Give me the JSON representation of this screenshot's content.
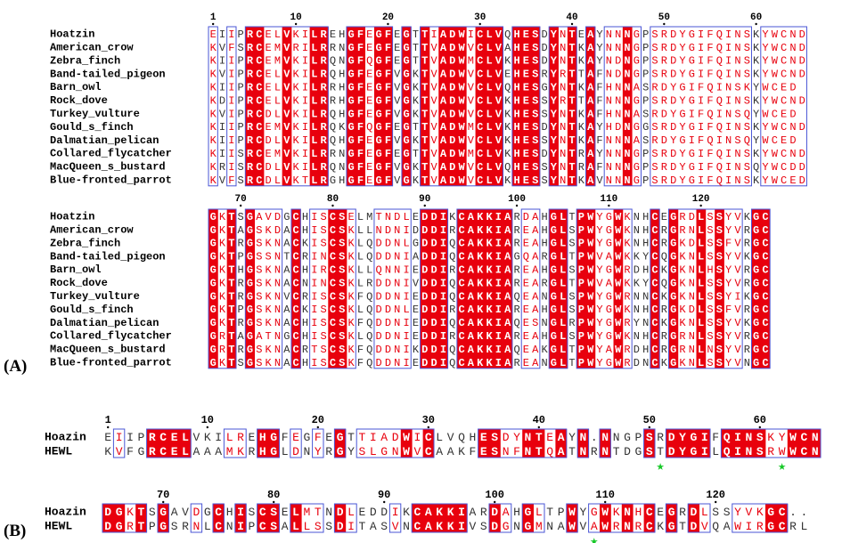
{
  "panel_a": {
    "label": "(A)",
    "blocks": [
      {
        "ruler": [
          {
            "label": "1",
            "col": 1
          },
          {
            "label": "10",
            "col": 10
          },
          {
            "label": "20",
            "col": 20
          },
          {
            "label": "30",
            "col": 30
          },
          {
            "label": "40",
            "col": 40
          },
          {
            "label": "50",
            "col": 50
          },
          {
            "label": "60",
            "col": 60
          }
        ],
        "names": [
          "Hoatzin",
          "American_crow",
          "Zebra_finch",
          "Band-tailed_pigeon",
          "Barn_owl",
          "Rock_dove",
          "Turkey_vulture",
          "Gould_s_finch",
          "Dalmatian_pelican",
          "Collared_flycatcher",
          "MacQueen_s_bustard",
          "Blue-fronted_parrot"
        ],
        "seqs": [
          "EIIPRCELVKILREHGFEGFEGTTIADWICLVQHESDYNTEAYNNNGPSRDYGIFQINSKYWCND",
          "KVFSRCEMVRILRRNGFEGFEGTTVADWVCLVAHESDYNTKAYNNNGPSRDYGIFQINSKYWCND",
          "KIIPRCEMVKILRQNGFQGFEGTTVADWMCLVKHESDYNTKAYNDNGPSRDYGIFQINSKYWCND",
          "KVIPRCELVKILRQHGFEGFVGKTVADWVCLVEHESRYRTTAFNDNGPSRDYGIFQINSKYWCND",
          "KIIPRCELVKILRRHGFEGFVGKTVADWVCLVQHESGYNTKAFHNNASRDYGIFQINSKYWCED",
          "KDIPRCELVKILRRHGFEGFVGKTVADWVCLVKHESSYRTTAFNNNGPSRDYGIFQINSKYWCND",
          "KVIPRCDLVKILRQHGFEGFVGKTVADWVCLVKHESSYNTKAFHNNASRDYGIFQINSQYWCED",
          "KIIPRCEMVKILRQKGFQGFEGTTVADWMCLVKHESDYNTKAYHDNGGSRDYGIFQINSKYWCND",
          "KIIPRCDLVKILRQHGFEGFVGKTVADWVCLVKHESSYNTKAFNNNASRDYGIFQINSQYWCED",
          "KIISRCEMVKILRRNGFEGFEGTTVADWMCLVKHESDYNTRAYNNNGPSRDYGIFQINSKYWCND",
          "KRISRCDLVKILRQNGFEGFVGKTVADWVCLVQHESSYNTRAFNNNGPSRDYGIFQINSQYWCDD",
          "KVFSRCDLVKTLRGHGFEGFVGKTVADWVCLVKHESSYNTKAVNNNGPSRDYGIFQINSKYWCED"
        ]
      },
      {
        "ruler": [
          {
            "label": "70",
            "col": 4
          },
          {
            "label": "80",
            "col": 14
          },
          {
            "label": "90",
            "col": 24
          },
          {
            "label": "100",
            "col": 34
          },
          {
            "label": "110",
            "col": 44
          },
          {
            "label": "120",
            "col": 54
          }
        ],
        "names": [
          "Hoatzin",
          "American_crow",
          "Zebra_finch",
          "Band-tailed_pigeon",
          "Barn_owl",
          "Rock_dove",
          "Turkey_vulture",
          "Gould_s_finch",
          "Dalmatian_pelican",
          "Collared_flycatcher",
          "MacQueen_s_bustard",
          "Blue-fronted_parrot"
        ],
        "seqs": [
          "GKTSGAVDGCHISCSELMTNDLEDDIKCAKKIARDAHGLTPWYGWKNHCEGRDLSSYVKGC",
          "GKTAGSKDACHISCSKLLNDNIDDDIRCAKKIAREAHGLSPWYGWKNHCRGRNLSSYVRGC",
          "GKTRGSKNACKISCSKLQDDNLGDDIQCAKKIAREAHGLSPWYGWKNHCRGKDLSSFVRGC",
          "GKTPGSSNTCRINCSKLQDDNIADDIQCAKKIAGQARGLTPWVAWKKYCQGKNLSSYVKGC",
          "GKTHGSKNACHIRCSKLLQNNIEDDIRCAKKIAREAHGLSPWYGWRDHCKGKNLHSYVRGC",
          "GKTRGSKNACNINCSKLRDDNIVDDIQCAKKIAREARGLTPWVAWKKYCQGKNLSSYVRGC",
          "GKTRGSKNVCRISCSKFQDDNIEDDIQCAKKIAQEANGLSPWYGWRNNCKGKNLSSYIKGC",
          "GKTPGSKNACKISCSKLQDDNLEDDIRCAKKIAREAHGLSPWYGWKNHCRGKDLSSFVRGC",
          "GKTRGSKNACHISCSKFQDDNIEDDIQCAKKIAQESNGLRPWYGWRYNCKGKNLSSYVKGC",
          "GRTAGATNGCHISCSKLQDDNIEDDIRCAKKIAREAHGLSPWYGWKNHCRGRNLSSYVRGC",
          "GRTRGSKNACRTSCSKFQDDNIKDDIQCAKKIAQEAKGLTPWYAWRDHCRGRNLNSYVRGC",
          "GKTSGSKNACHISCSKFQDDNIEDDIQCAKKIAREANGLTPWYGWRDNCKGKNLSSYVNGC"
        ]
      }
    ]
  },
  "panel_b": {
    "label": "(B)",
    "blocks": [
      {
        "ruler": [
          {
            "label": "1",
            "col": 1
          },
          {
            "label": "10",
            "col": 10
          },
          {
            "label": "20",
            "col": 20
          },
          {
            "label": "30",
            "col": 30
          },
          {
            "label": "40",
            "col": 40
          },
          {
            "label": "50",
            "col": 50
          },
          {
            "label": "60",
            "col": 60
          }
        ],
        "names": [
          "Hoazin",
          "HEWL"
        ],
        "seqs": [
          "EIIPRCELVKILREHGFEGFEGTTIADWICLVQHESDYNTEAYN.NNGPSRDYGIFQINSKYWCN",
          "KVFGRCELAAAMKRHGLDNYRGYSLGNWVCAAKFESNFNTQATNRNTDGSTDYGILQINSRWWCN"
        ],
        "stars_col": [
          51,
          62
        ]
      },
      {
        "ruler": [
          {
            "label": "70",
            "col": 6
          },
          {
            "label": "80",
            "col": 16
          },
          {
            "label": "90",
            "col": 26
          },
          {
            "label": "100",
            "col": 36
          },
          {
            "label": "110",
            "col": 46
          },
          {
            "label": "120",
            "col": 56
          }
        ],
        "names": [
          "Hoazin",
          "HEWL"
        ],
        "seqs": [
          "DGKTSGAVDGCHISCSELMTNDLEDDIKCAKKIARDAHGLTPWYGWKNHCEGRDLSSYVKGC..",
          "DGRTPGSRNLCNIPCSALLSSDITASVNCAKKIVSDGNGMNAWVAWRNRCKGTDVQAWIRGCRL"
        ],
        "stars_col": [
          45
        ]
      }
    ]
  },
  "colors": {
    "identical_bg": "#e8000d",
    "identical_fg": "#ffffff",
    "similar_fg": "#e8000d",
    "nonconserved_fg": "#333333",
    "box": "#4a55d6",
    "star": "#17c828"
  }
}
